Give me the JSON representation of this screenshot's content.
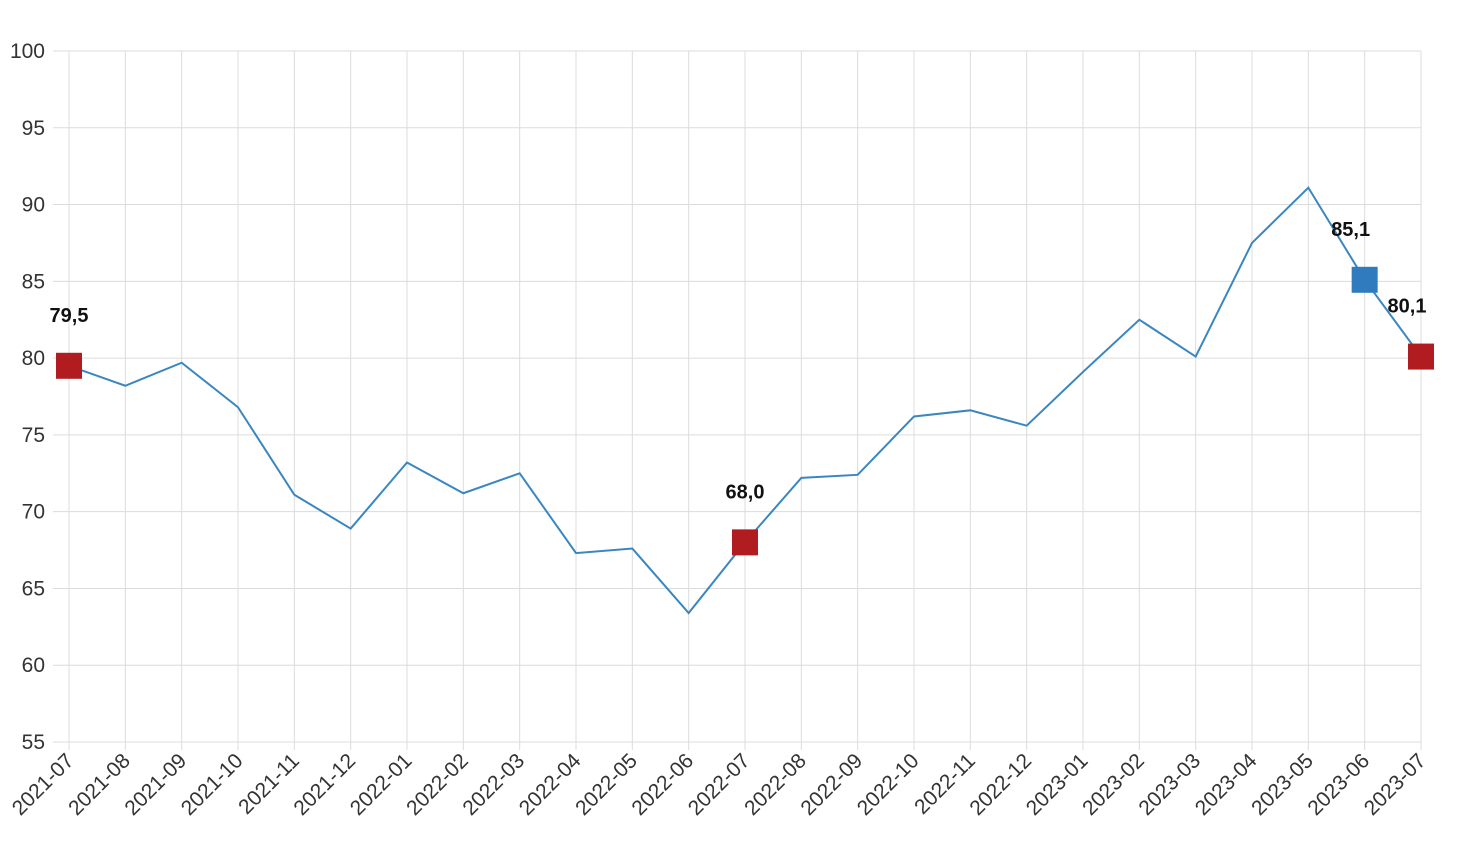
{
  "chart_data": {
    "type": "line",
    "categories": [
      "2021-07",
      "2021-08",
      "2021-09",
      "2021-10",
      "2021-11",
      "2021-12",
      "2022-01",
      "2022-02",
      "2022-03",
      "2022-04",
      "2022-05",
      "2022-06",
      "2022-07",
      "2022-08",
      "2022-09",
      "2022-10",
      "2022-11",
      "2022-12",
      "2023-01",
      "2023-02",
      "2023-03",
      "2023-04",
      "2023-05",
      "2023-06",
      "2023-07"
    ],
    "series": [
      {
        "color": "#3a86c0",
        "values": [
          79.5,
          78.2,
          79.7,
          76.8,
          71.1,
          68.9,
          73.2,
          71.2,
          72.5,
          67.3,
          67.6,
          63.4,
          68.0,
          72.2,
          72.4,
          76.2,
          76.6,
          75.6,
          79.1,
          82.5,
          80.1,
          87.5,
          91.1,
          85.1,
          80.1
        ],
        "value_labels": [
          "79,5",
          null,
          null,
          null,
          null,
          null,
          null,
          null,
          null,
          null,
          null,
          null,
          "68,0",
          null,
          null,
          null,
          null,
          null,
          null,
          null,
          null,
          null,
          null,
          "85,1",
          "80,1"
        ],
        "marker_colors": [
          "#b01c20",
          null,
          null,
          null,
          null,
          null,
          null,
          null,
          null,
          null,
          null,
          null,
          "#b01c20",
          null,
          null,
          null,
          null,
          null,
          null,
          null,
          null,
          null,
          null,
          "#2f7bbd",
          "#b01c20"
        ]
      }
    ],
    "ylim": [
      55,
      100
    ],
    "yticks": [
      55,
      60,
      65,
      70,
      75,
      80,
      85,
      90,
      95,
      100
    ],
    "grid": true
  }
}
